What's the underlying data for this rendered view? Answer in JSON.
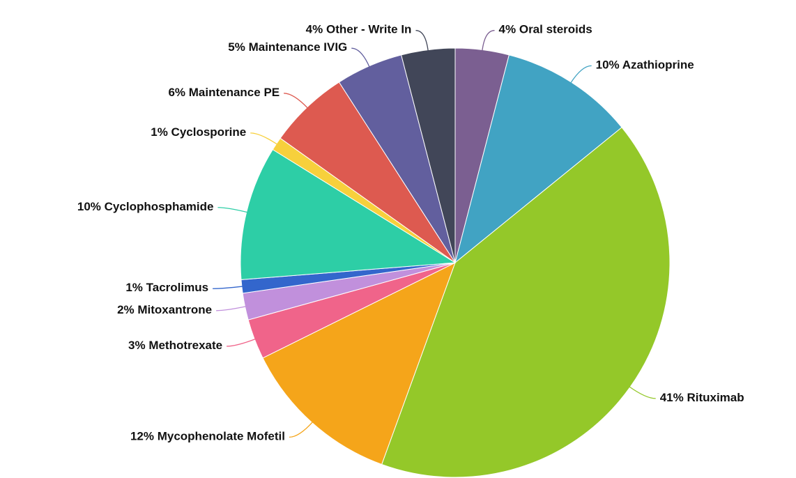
{
  "chart_data": {
    "type": "pie",
    "categories": [
      "Oral steroids",
      "Azathioprine",
      "Rituximab",
      "Mycophenolate Mofetil",
      "Methotrexate",
      "Mitoxantrone",
      "Tacrolimus",
      "Cyclophosphamide",
      "Cyclosporine",
      "Maintenance PE",
      "Maintenance IVIG",
      "Other - Write In"
    ],
    "values": [
      4,
      10,
      41,
      12,
      3,
      2,
      1,
      10,
      1,
      6,
      5,
      4
    ],
    "value_labels": [
      "4%",
      "10%",
      "41%",
      "12%",
      "3%",
      "2%",
      "1%",
      "10%",
      "1%",
      "6%",
      "5%",
      "4%"
    ],
    "colors": [
      "#7b5f91",
      "#41a3c3",
      "#94c829",
      "#f5a51a",
      "#f0648a",
      "#c190dc",
      "#3366cc",
      "#2dcea6",
      "#f7d03c",
      "#dd5a50",
      "#625f9e",
      "#414658"
    ]
  }
}
